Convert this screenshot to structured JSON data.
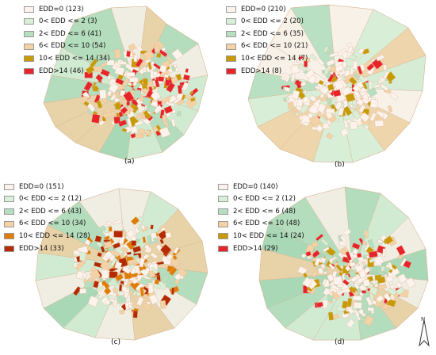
{
  "figure": {
    "colors": {
      "c0": "#fdf3ec",
      "c1": "#d9efd8",
      "c2": "#b5dfbf",
      "c3": "#f4d2a6",
      "c4": "#c89a00",
      "c5": "#e8242a",
      "c4c": "#e07c00",
      "c5c": "#b52a00",
      "border_map": "#d8b89a",
      "background_green": "#cfe8cd"
    },
    "north_arrow": {
      "icon": "north-arrow-icon",
      "label": "N"
    },
    "panels": [
      {
        "caption": "(a)",
        "legend": [
          {
            "label": "EDD=0 (123)",
            "color": "#fdf3ec"
          },
          {
            "label": "0< EDD <= 2 (3)",
            "color": "#d9efd8"
          },
          {
            "label": "2< EDD <= 6 (41)",
            "color": "#b5dfbf"
          },
          {
            "label": "6< EDD <= 10 (54)",
            "color": "#f4d2a6"
          },
          {
            "label": "10< EDD <= 14 (34)",
            "color": "#c89a00"
          },
          {
            "label": "EDD>14 (46)",
            "color": "#e8242a"
          }
        ]
      },
      {
        "caption": "(b)",
        "legend": [
          {
            "label": "EDD=0 (210)",
            "color": "#fdf3ec"
          },
          {
            "label": "0< EDD <= 2 (20)",
            "color": "#d9efd8"
          },
          {
            "label": "2< EDD <= 6 (35)",
            "color": "#b5dfbf"
          },
          {
            "label": "6< EDD <= 10 (21)",
            "color": "#f4d2a6"
          },
          {
            "label": "10< EDD <= 14 (7)",
            "color": "#c89a00"
          },
          {
            "label": "EDD>14 (8)",
            "color": "#e8242a"
          }
        ]
      },
      {
        "caption": "(c)",
        "legend": [
          {
            "label": "EDD=0 (151)",
            "color": "#fdf3ec"
          },
          {
            "label": "0< EDD <= 2 (12)",
            "color": "#d9efd8"
          },
          {
            "label": "2< EDD <= 6 (43)",
            "color": "#b5dfbf"
          },
          {
            "label": "6< EDD <= 10 (34)",
            "color": "#f4d2a6"
          },
          {
            "label": "10< EDD <= 14 (28)",
            "color": "#e07c00"
          },
          {
            "label": "EDD>14 (33)",
            "color": "#b52a00"
          }
        ]
      },
      {
        "caption": "(d)",
        "legend": [
          {
            "label": "EDD=0 (140)",
            "color": "#fdf3ec"
          },
          {
            "label": "0< EDD <= 2 (12)",
            "color": "#d9efd8"
          },
          {
            "label": "2< EDD <= 6 (48)",
            "color": "#b5dfbf"
          },
          {
            "label": "6< EDD <= 10 (48)",
            "color": "#f4d2a6"
          },
          {
            "label": "10< EDD <= 14 (24)",
            "color": "#c89a00"
          },
          {
            "label": "EDD>14 (29)",
            "color": "#e8242a"
          }
        ]
      }
    ]
  }
}
